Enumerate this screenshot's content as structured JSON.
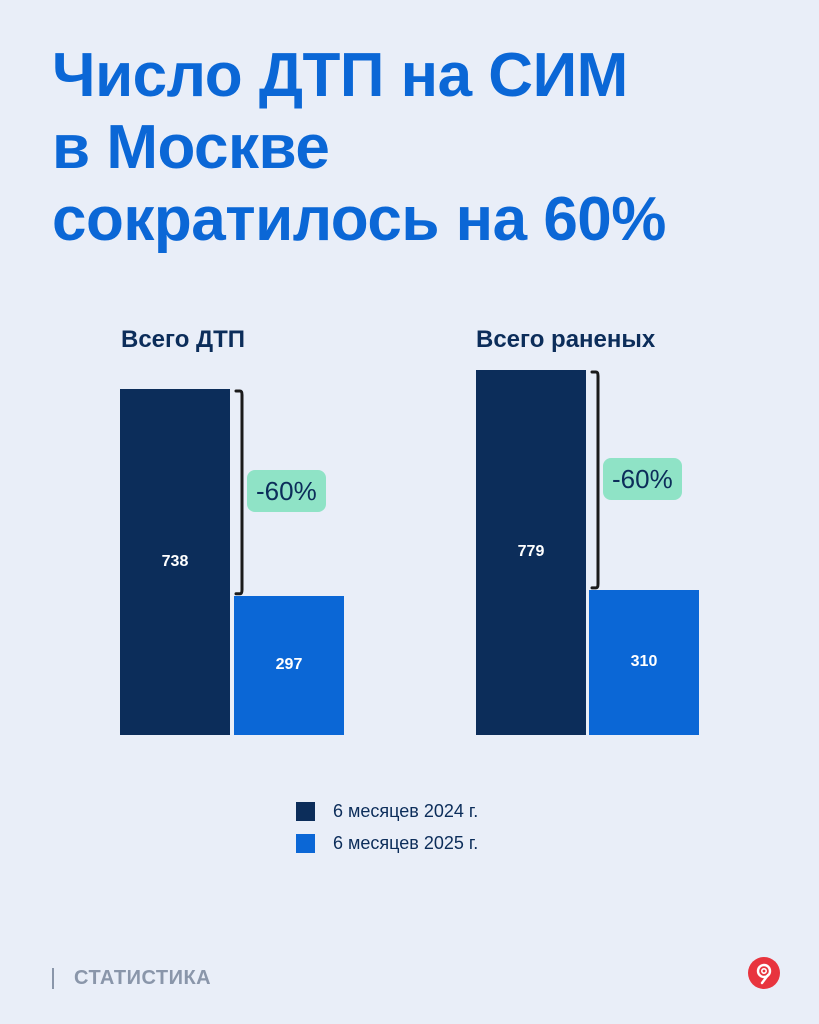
{
  "title": {
    "line1": "Число ДТП на СИМ",
    "line2": "в Москве",
    "line3": "сократилось на 60%"
  },
  "chart_data": [
    {
      "type": "bar",
      "title": "Всего ДТП",
      "categories": [
        "6 месяцев 2024 г.",
        "6 месяцев 2025 г."
      ],
      "values": [
        738,
        297
      ],
      "value_labels": [
        "738",
        "297"
      ],
      "change_label": "-60%",
      "colors": [
        "#0c2d5a",
        "#0b67d6"
      ]
    },
    {
      "type": "bar",
      "title": "Всего раненых",
      "categories": [
        "6 месяцев 2024 г.",
        "6 месяцев 2025 г."
      ],
      "values": [
        779,
        310
      ],
      "value_labels": [
        "779",
        "310"
      ],
      "change_label": "-60%",
      "colors": [
        "#0c2d5a",
        "#0b67d6"
      ]
    }
  ],
  "legend": [
    {
      "label": "6 месяцев 2024 г.",
      "color": "#0c2d5a"
    },
    {
      "label": "6 месяцев 2025 г.",
      "color": "#0b67d6"
    }
  ],
  "footer": {
    "section": "СТАТИСТИКА",
    "logo_icon": "moscow-logo-icon"
  },
  "colors": {
    "background": "#e9eef8",
    "accent": "#0b67d6",
    "dark": "#0c2d5a",
    "badge": "#8fe3c6",
    "logo": "#e8343e"
  }
}
